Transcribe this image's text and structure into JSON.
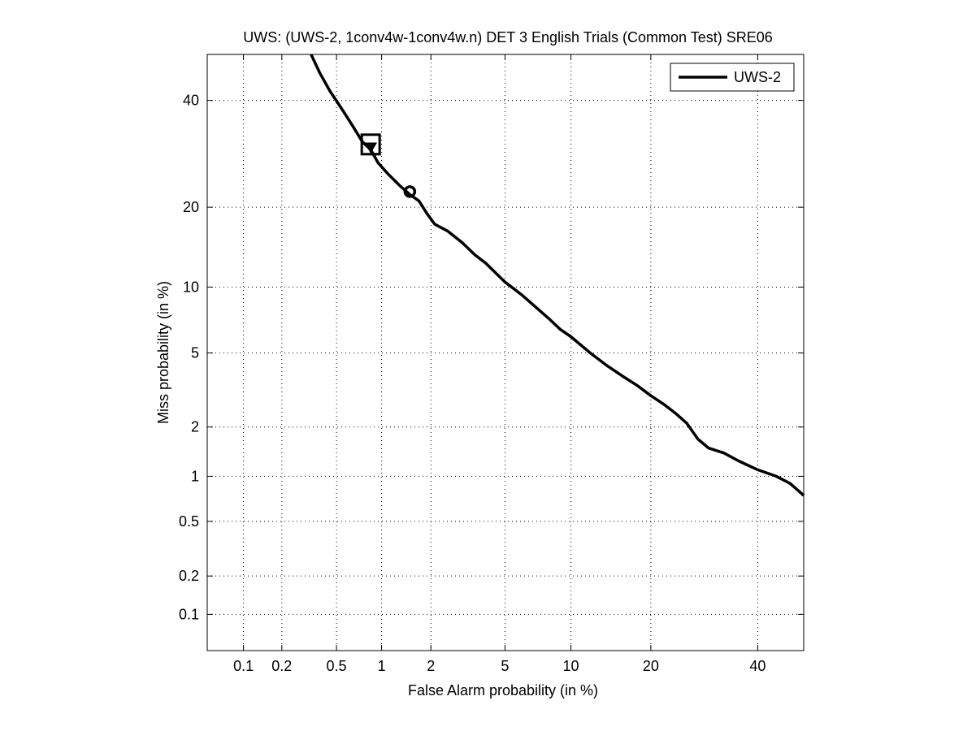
{
  "chart_data": {
    "type": "line",
    "title": "UWS: (UWS-2, 1conv4w-1conv4w.n) DET 3 English Trials (Common Test) SRE06",
    "xlabel": "False Alarm probability (in %)",
    "ylabel": "Miss probability (in %)",
    "scale": "normal-deviate (probit) on both axes",
    "grid": true,
    "legend_position": "top-right",
    "xlim": [
      0.05,
      50
    ],
    "ylim": [
      0.05,
      50
    ],
    "x_ticks": [
      {
        "value": 0.1,
        "label": "0.1"
      },
      {
        "value": 0.2,
        "label": "0.2"
      },
      {
        "value": 0.5,
        "label": "0.5"
      },
      {
        "value": 1,
        "label": "1"
      },
      {
        "value": 2,
        "label": "2"
      },
      {
        "value": 5,
        "label": "5"
      },
      {
        "value": 10,
        "label": "10"
      },
      {
        "value": 20,
        "label": "20"
      },
      {
        "value": 40,
        "label": "40"
      }
    ],
    "y_ticks": [
      {
        "value": 0.1,
        "label": "0.1"
      },
      {
        "value": 0.2,
        "label": "0.2"
      },
      {
        "value": 0.5,
        "label": "0.5"
      },
      {
        "value": 1,
        "label": "1"
      },
      {
        "value": 2,
        "label": "2"
      },
      {
        "value": 5,
        "label": "5"
      },
      {
        "value": 10,
        "label": "10"
      },
      {
        "value": 20,
        "label": "20"
      },
      {
        "value": 40,
        "label": "40"
      }
    ],
    "series": [
      {
        "name": "UWS-2",
        "color": "#000000",
        "x": [
          0.33,
          0.38,
          0.45,
          0.55,
          0.65,
          0.75,
          0.85,
          0.95,
          1.1,
          1.3,
          1.5,
          1.7,
          1.9,
          2.1,
          2.5,
          3.0,
          3.5,
          4.0,
          5.0,
          6.0,
          7.0,
          8.0,
          9.0,
          10.0,
          12.0,
          14.0,
          16.0,
          18.0,
          20.0,
          22.0,
          24.0,
          26.0,
          28.0,
          30.0,
          33.0,
          36.0,
          40.0,
          44.0,
          47.0,
          50.0
        ],
        "y": [
          50.0,
          46.0,
          42.0,
          38.0,
          34.5,
          31.5,
          30.0,
          27.5,
          25.5,
          23.5,
          22.0,
          21.0,
          19.0,
          17.5,
          16.5,
          15.0,
          13.5,
          12.5,
          10.5,
          9.3,
          8.2,
          7.3,
          6.5,
          6.0,
          5.0,
          4.3,
          3.8,
          3.4,
          3.0,
          2.7,
          2.4,
          2.1,
          1.7,
          1.5,
          1.4,
          1.25,
          1.1,
          1.0,
          0.9,
          0.75
        ]
      }
    ],
    "markers": [
      {
        "shape": "square",
        "x": 0.85,
        "y": 31.0
      },
      {
        "shape": "triangle-down",
        "x": 0.85,
        "y": 30.5
      },
      {
        "shape": "circle",
        "x": 1.5,
        "y": 22.5
      }
    ]
  }
}
